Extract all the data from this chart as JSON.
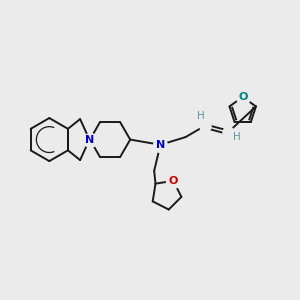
{
  "background_color": "#ebebeb",
  "bond_color": "#1a1a1a",
  "N_color": "#0000cc",
  "O_color": "#cc0000",
  "O_furan_color": "#008080",
  "H_color": "#5a9a9a",
  "lw": 1.4,
  "figsize": [
    3.0,
    3.0
  ],
  "dpi": 100,
  "xlim": [
    -4.8,
    3.8
  ],
  "ylim": [
    -2.5,
    2.2
  ]
}
